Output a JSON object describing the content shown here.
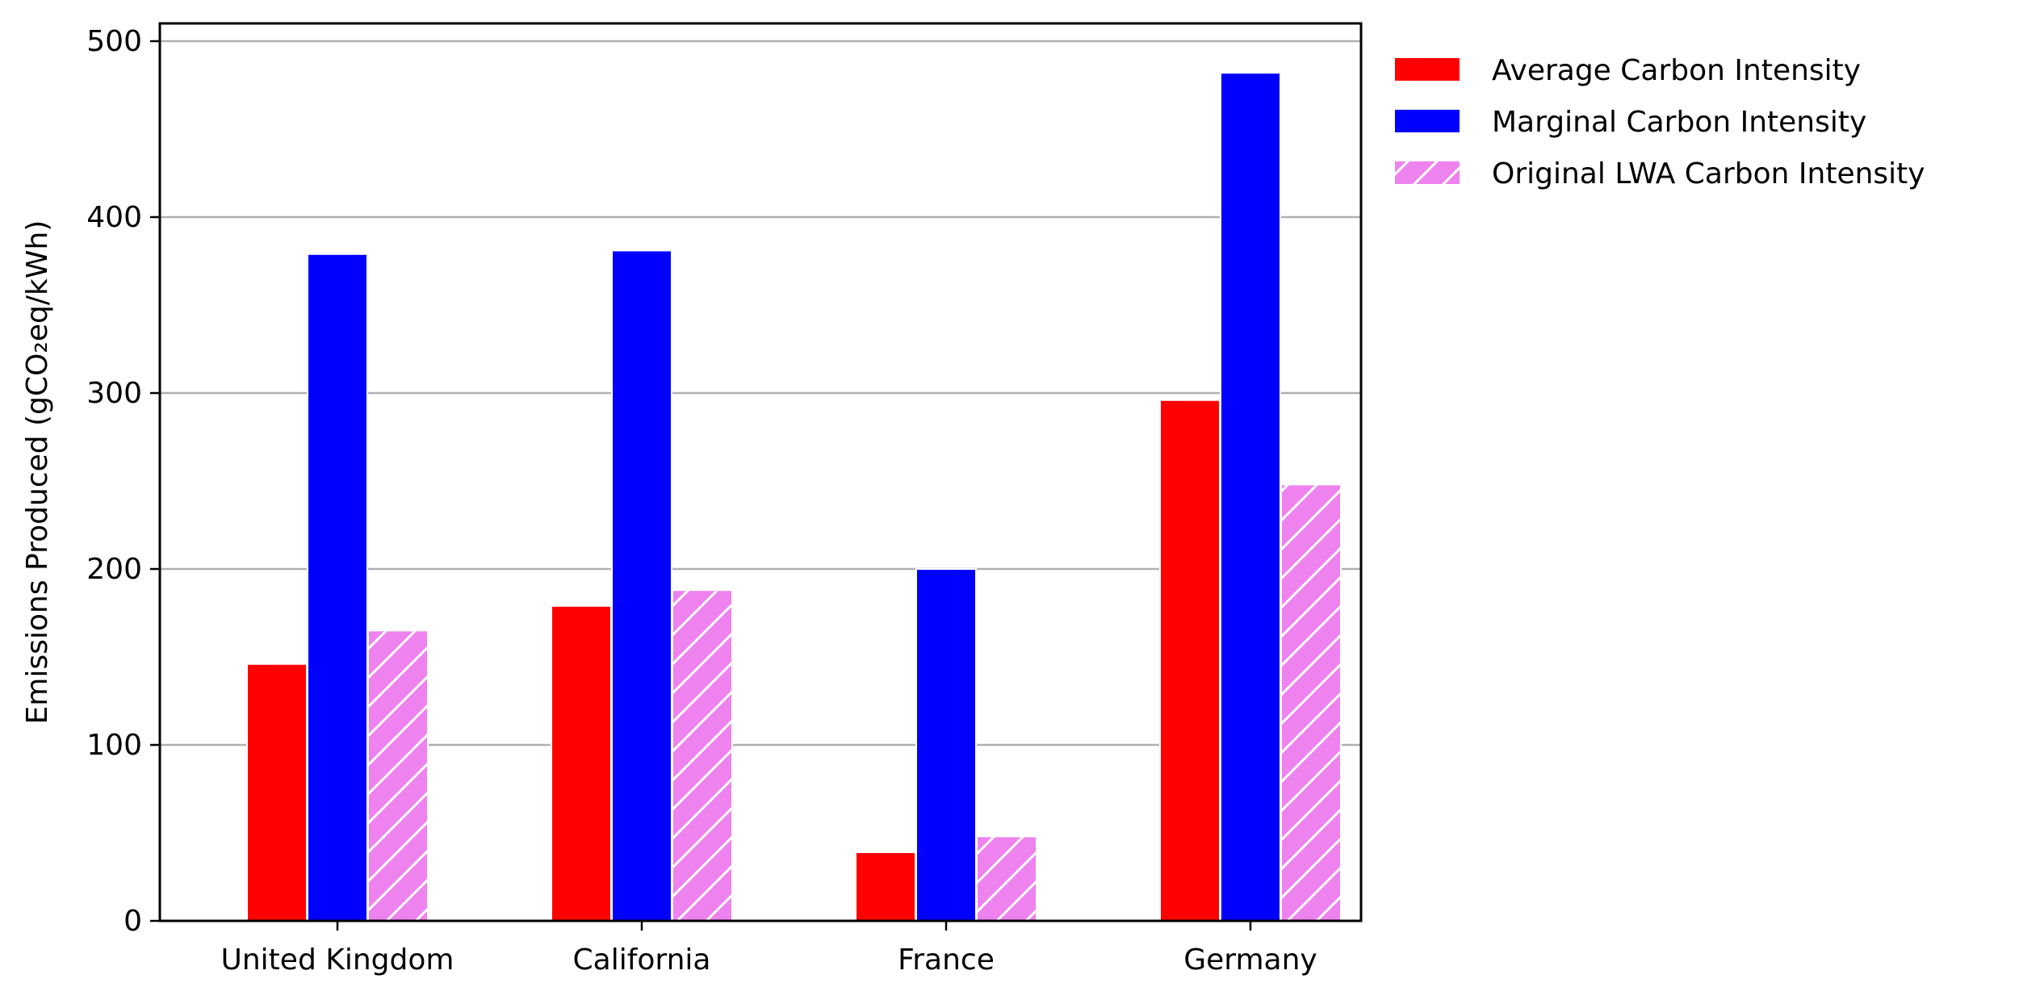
{
  "chart_data": {
    "type": "bar",
    "categories": [
      "United Kingdom",
      "California",
      "France",
      "Germany"
    ],
    "series": [
      {
        "name": "Average Carbon Intensity",
        "values": [
          146,
          179,
          39,
          296
        ],
        "color": "#ff0000",
        "hatch": false
      },
      {
        "name": "Marginal Carbon Intensity",
        "values": [
          379,
          381,
          200,
          482
        ],
        "color": "#0000ff",
        "hatch": false
      },
      {
        "name": "Original LWA Carbon Intensity",
        "values": [
          165,
          188,
          48,
          248
        ],
        "color": "#ee82ee",
        "hatch": true
      }
    ],
    "title": "",
    "xlabel": "",
    "ylabel": "Emissions Produced (gCO₂eq/kWh)",
    "ylim": [
      0,
      500
    ],
    "yticks": [
      "0",
      "100",
      "200",
      "300",
      "400",
      "500"
    ],
    "grid": "y",
    "legend_position": "outside-top-right"
  }
}
